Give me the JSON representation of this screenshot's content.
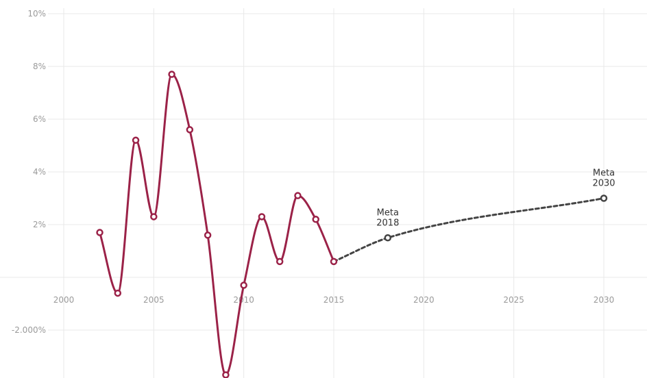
{
  "chart_data": {
    "type": "line",
    "title": "",
    "xlabel": "",
    "ylabel": "",
    "xlim": [
      2000,
      2032
    ],
    "ylim": [
      -3.75,
      10
    ],
    "grid": true,
    "x_ticks": [
      2000,
      2005,
      2010,
      2015,
      2020,
      2025,
      2030
    ],
    "y_ticks": [
      {
        "value": 10,
        "label": "10%"
      },
      {
        "value": 8,
        "label": "8%"
      },
      {
        "value": 6,
        "label": "6%"
      },
      {
        "value": 4,
        "label": "4%"
      },
      {
        "value": 2,
        "label": "2%"
      },
      {
        "value": -2,
        "label": "-2.000%"
      }
    ],
    "series": [
      {
        "color": "#9b2248",
        "style": "solid",
        "x": [
          2002,
          2003,
          2004,
          2005,
          2006,
          2007,
          2008,
          2009,
          2010,
          2011,
          2012,
          2013,
          2014,
          2015
        ],
        "y": [
          1.7,
          -0.6,
          5.2,
          2.3,
          7.7,
          5.6,
          1.6,
          -3.7,
          -0.3,
          2.3,
          0.6,
          3.1,
          2.2,
          0.6
        ]
      },
      {
        "color": "#444444",
        "style": "dashed",
        "x": [
          2015,
          2018,
          2030
        ],
        "y": [
          0.6,
          1.5,
          3.0
        ]
      }
    ],
    "annotations": [
      {
        "x": 2018,
        "y": 1.5,
        "lines": [
          "Meta",
          "2018"
        ]
      },
      {
        "x": 2030,
        "y": 3.0,
        "lines": [
          "Meta",
          "2030"
        ]
      }
    ]
  }
}
